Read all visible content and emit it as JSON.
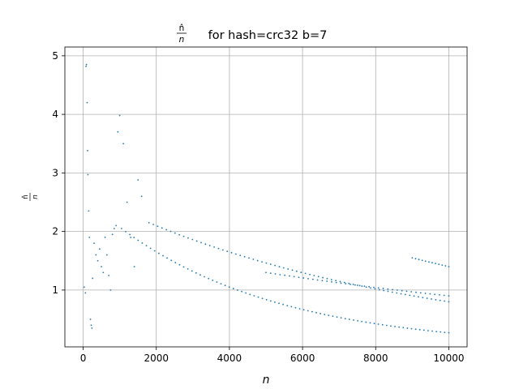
{
  "chart_data": {
    "type": "scatter",
    "title_frac_num": "n̂",
    "title_frac_den": "n",
    "title_rest": " for hash=crc32 b=7",
    "xlabel": "n",
    "ylabel_num": "n̂",
    "ylabel_den": "n",
    "xlim": [
      -500,
      10500
    ],
    "ylim": [
      0.03,
      5.15
    ],
    "xticks": [
      0,
      2000,
      4000,
      6000,
      8000,
      10000
    ],
    "yticks": [
      1,
      2,
      3,
      4,
      5
    ],
    "grid": true,
    "marker_color": "#1f77b4",
    "series": [
      {
        "trend_bands": [
          {
            "x_start": 1050,
            "x_end": 10000,
            "y_start": 2.05,
            "y_end": 0.27,
            "points": 80
          },
          {
            "x_start": 1800,
            "x_end": 10000,
            "y_start": 2.15,
            "y_end": 0.8,
            "points": 70
          },
          {
            "x_start": 5000,
            "x_end": 10000,
            "y_start": 1.3,
            "y_end": 0.9,
            "points": 40
          },
          {
            "x_start": 9000,
            "x_end": 10000,
            "y_start": 1.55,
            "y_end": 1.4,
            "points": 12
          }
        ],
        "cluster_points": [
          [
            30,
            1.05
          ],
          [
            60,
            0.95
          ],
          [
            80,
            4.82
          ],
          [
            90,
            4.85
          ],
          [
            110,
            4.2
          ],
          [
            120,
            3.38
          ],
          [
            130,
            2.97
          ],
          [
            150,
            2.35
          ],
          [
            170,
            1.9
          ],
          [
            200,
            0.5
          ],
          [
            220,
            0.4
          ],
          [
            240,
            0.35
          ],
          [
            260,
            1.2
          ],
          [
            300,
            1.8
          ],
          [
            350,
            1.6
          ],
          [
            400,
            1.5
          ],
          [
            450,
            1.7
          ],
          [
            500,
            1.4
          ],
          [
            550,
            1.3
          ],
          [
            600,
            1.9
          ],
          [
            650,
            1.6
          ],
          [
            700,
            1.25
          ],
          [
            750,
            1.0
          ],
          [
            800,
            1.95
          ],
          [
            850,
            2.05
          ],
          [
            900,
            2.1
          ],
          [
            950,
            3.7
          ],
          [
            1000,
            3.98
          ],
          [
            1100,
            3.5
          ],
          [
            1200,
            2.5
          ],
          [
            1300,
            1.9
          ],
          [
            1400,
            1.4
          ],
          [
            1500,
            2.88
          ],
          [
            1600,
            2.6
          ]
        ]
      }
    ]
  }
}
